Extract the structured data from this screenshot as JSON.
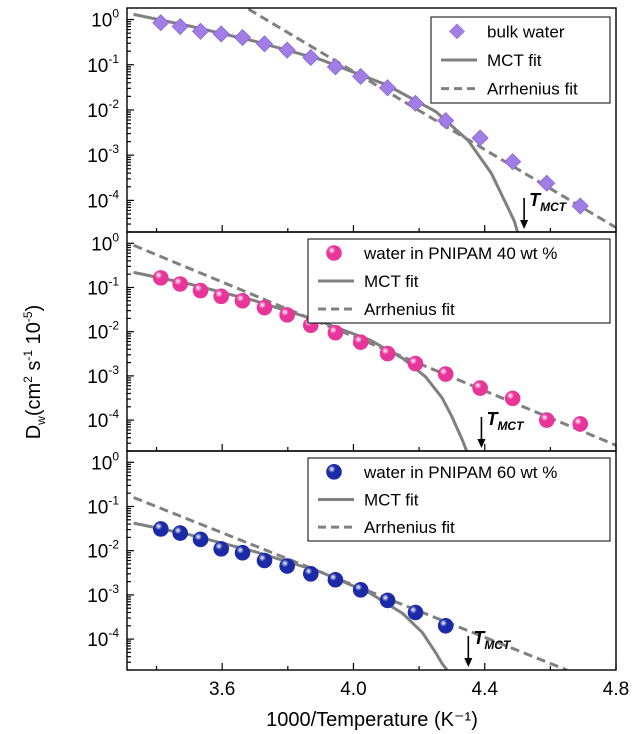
{
  "chart_data": [
    {
      "type": "scatter",
      "panel": "top",
      "log_y": true,
      "ylim": [
        2e-05,
        1.8
      ],
      "xlim": [
        3.31,
        4.8
      ],
      "series": [
        {
          "name": "bulk water",
          "marker": "diamond",
          "color": "#a07ee6",
          "x": [
            3.413,
            3.472,
            3.534,
            3.597,
            3.662,
            3.729,
            3.798,
            3.87,
            3.945,
            4.022,
            4.104,
            4.189,
            4.281,
            4.386,
            4.485,
            4.589,
            4.691
          ],
          "y": [
            0.85,
            0.7,
            0.55,
            0.48,
            0.4,
            0.29,
            0.21,
            0.145,
            0.09,
            0.055,
            0.031,
            0.014,
            0.0058,
            0.0024,
            0.00072,
            0.00024,
            7.5e-05
          ]
        },
        {
          "name": "MCT fit",
          "style": "solid",
          "color": "#808080",
          "x": [
            3.33,
            3.5,
            3.7,
            3.9,
            4.1,
            4.25,
            4.35,
            4.42,
            4.46,
            4.49,
            4.5
          ],
          "y": [
            1.3,
            0.72,
            0.33,
            0.13,
            0.036,
            0.0093,
            0.0021,
            0.0004,
            0.0001,
            3.5e-05,
            2e-05
          ]
        },
        {
          "name": "Arrhenius fit",
          "style": "dashed",
          "color": "#808080",
          "x": [
            3.68,
            4.8
          ],
          "y": [
            1.7,
            2.5e-05
          ]
        }
      ],
      "annotation": {
        "label": "T",
        "subscript": "MCT",
        "x": 4.52
      }
    },
    {
      "type": "scatter",
      "panel": "middle",
      "log_y": true,
      "ylim": [
        2e-05,
        1.8
      ],
      "xlim": [
        3.31,
        4.8
      ],
      "series": [
        {
          "name": "water in PNIPAM 40 wt %",
          "marker": "sphere",
          "color": "#e8359a",
          "x": [
            3.413,
            3.472,
            3.534,
            3.597,
            3.662,
            3.729,
            3.798,
            3.87,
            3.945,
            4.022,
            4.104,
            4.189,
            4.281,
            4.386,
            4.485,
            4.589,
            4.691
          ],
          "y": [
            0.165,
            0.12,
            0.085,
            0.063,
            0.05,
            0.035,
            0.024,
            0.014,
            0.0095,
            0.0058,
            0.0032,
            0.0019,
            0.0011,
            0.00053,
            0.00031,
            0.0001,
            8.2e-05
          ]
        },
        {
          "name": "MCT fit",
          "style": "solid",
          "color": "#808080",
          "x": [
            3.33,
            3.5,
            3.7,
            3.9,
            4.05,
            4.15,
            4.22,
            4.27,
            4.3,
            4.33,
            4.345
          ],
          "y": [
            0.22,
            0.12,
            0.05,
            0.017,
            0.0065,
            0.0025,
            0.00095,
            0.00032,
            0.00012,
            3.8e-05,
            2e-05
          ]
        },
        {
          "name": "Arrhenius fit",
          "style": "dashed",
          "color": "#808080",
          "x": [
            3.33,
            4.8
          ],
          "y": [
            0.9,
            2.7e-05
          ]
        }
      ],
      "annotation": {
        "label": "T",
        "subscript": "MCT",
        "x": 4.39
      }
    },
    {
      "type": "scatter",
      "panel": "bottom",
      "log_y": true,
      "ylim": [
        2e-05,
        1.8
      ],
      "xlim": [
        3.31,
        4.8
      ],
      "xlabel": "1000/Temperature (K⁻¹)",
      "xticks": [
        "3.6",
        "4.0",
        "4.4",
        "4.8"
      ],
      "series": [
        {
          "name": "water in PNIPAM 60 wt %",
          "marker": "sphere",
          "color": "#1c2aa8",
          "x": [
            3.413,
            3.472,
            3.534,
            3.597,
            3.662,
            3.729,
            3.798,
            3.87,
            3.945,
            4.022,
            4.104,
            4.189,
            4.281
          ],
          "y": [
            0.031,
            0.025,
            0.018,
            0.011,
            0.009,
            0.006,
            0.0045,
            0.003,
            0.0022,
            0.0013,
            0.00075,
            0.0004,
            0.0002
          ]
        },
        {
          "name": "MCT fit",
          "style": "solid",
          "color": "#808080",
          "x": [
            3.33,
            3.5,
            3.7,
            3.9,
            4.05,
            4.15,
            4.21,
            4.25,
            4.27,
            4.285
          ],
          "y": [
            0.042,
            0.023,
            0.0095,
            0.0033,
            0.0011,
            0.00038,
            0.00014,
            5e-05,
            2.8e-05,
            2e-05
          ]
        },
        {
          "name": "Arrhenius fit",
          "style": "dashed",
          "color": "#808080",
          "x": [
            3.33,
            4.65
          ],
          "y": [
            0.16,
            2e-05
          ]
        }
      ],
      "annotation": {
        "label": "T",
        "subscript": "MCT",
        "x": 4.35
      }
    }
  ],
  "ylabel": {
    "main": "D",
    "sub": "w",
    "units_a": "(cm",
    "sup2": "2",
    "units_b": " s",
    "supm1": "-1",
    "units_c": " 10",
    "supm5": "-5",
    "units_d": ")"
  },
  "yticks": {
    "base": "10",
    "exps": [
      "0",
      "-1",
      "-2",
      "-3",
      "-4"
    ]
  }
}
